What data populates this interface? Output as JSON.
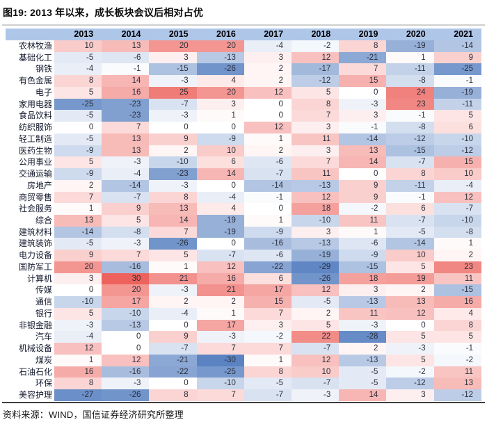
{
  "figure": {
    "title": "图19: 2013 年以来，成长板块会议后相对占优",
    "source": "资料来源：WIND，国信证券经济研究所整理"
  },
  "chart_data": {
    "type": "heatmap",
    "title": "图19: 2013 年以来，成长板块会议后相对占优",
    "columns": [
      "2013",
      "2014",
      "2015",
      "2016",
      "2017",
      "2018",
      "2019",
      "2020",
      "2021"
    ],
    "rows": [
      {
        "name": "农林牧渔",
        "values": [
          10,
          13,
          20,
          20,
          -4,
          -2,
          8,
          -19,
          -14
        ]
      },
      {
        "name": "基础化工",
        "values": [
          -5,
          -6,
          3,
          -13,
          3,
          12,
          -21,
          1,
          9
        ]
      },
      {
        "name": "钢铁",
        "values": [
          -4,
          -1,
          -15,
          -26,
          2,
          -17,
          7,
          -11,
          -25
        ]
      },
      {
        "name": "有色金属",
        "values": [
          8,
          14,
          -3,
          4,
          2,
          -12,
          15,
          -8,
          -1
        ]
      },
      {
        "name": "电子",
        "values": [
          5,
          16,
          25,
          20,
          12,
          5,
          0,
          24,
          -19
        ]
      },
      {
        "name": "家用电器",
        "values": [
          -25,
          -23,
          -7,
          3,
          0,
          8,
          -3,
          23,
          -11
        ]
      },
      {
        "name": "食品饮料",
        "values": [
          -5,
          -23,
          -3,
          1,
          0,
          7,
          3,
          -1,
          5
        ]
      },
      {
        "name": "纺织服饰",
        "values": [
          0,
          7,
          0,
          0,
          12,
          3,
          -1,
          -8,
          6
        ]
      },
      {
        "name": "轻工制造",
        "values": [
          -5,
          13,
          9,
          -9,
          1,
          11,
          -14,
          -12,
          -10
        ]
      },
      {
        "name": "医药生物",
        "values": [
          -9,
          13,
          2,
          10,
          2,
          3,
          13,
          -15,
          -12
        ]
      },
      {
        "name": "公用事业",
        "values": [
          5,
          -3,
          -10,
          6,
          -6,
          7,
          14,
          -7,
          15
        ]
      },
      {
        "name": "交通运输",
        "values": [
          -9,
          -4,
          -23,
          14,
          -7,
          11,
          0,
          8,
          10
        ]
      },
      {
        "name": "房地产",
        "values": [
          2,
          -14,
          -3,
          0,
          -14,
          -13,
          9,
          -11,
          -4
        ]
      },
      {
        "name": "商贸零售",
        "values": [
          7,
          -7,
          8,
          -4,
          -1,
          12,
          9,
          -1,
          12
        ]
      },
      {
        "name": "社会服务",
        "values": [
          1,
          9,
          13,
          4,
          0,
          18,
          -2,
          6,
          -7
        ]
      },
      {
        "name": "综合",
        "values": [
          13,
          5,
          14,
          -19,
          1,
          -10,
          11,
          -7,
          -10
        ]
      },
      {
        "name": "建筑材料",
        "values": [
          -14,
          -8,
          7,
          -19,
          -9,
          3,
          1,
          -5,
          -8
        ]
      },
      {
        "name": "建筑装饰",
        "values": [
          -5,
          -3,
          -26,
          0,
          -16,
          -13,
          -6,
          -14,
          1
        ]
      },
      {
        "name": "电力设备",
        "values": [
          9,
          7,
          5,
          -7,
          -6,
          -19,
          -9,
          10,
          2
        ]
      },
      {
        "name": "国防军工",
        "values": [
          20,
          -16,
          1,
          12,
          -22,
          -29,
          -15,
          5,
          23
        ]
      },
      {
        "name": "计算机",
        "values": [
          3,
          30,
          21,
          16,
          6,
          -26,
          18,
          19,
          11
        ]
      },
      {
        "name": "传媒",
        "values": [
          0,
          20,
          -3,
          21,
          17,
          12,
          3,
          2,
          -15
        ]
      },
      {
        "name": "通信",
        "values": [
          -10,
          17,
          2,
          2,
          15,
          -5,
          -13,
          13,
          16
        ]
      },
      {
        "name": "银行",
        "values": [
          5,
          -10,
          -4,
          1,
          7,
          2,
          11,
          12,
          4
        ]
      },
      {
        "name": "非银金融",
        "values": [
          -3,
          -13,
          0,
          17,
          3,
          5,
          -3,
          0,
          8
        ]
      },
      {
        "name": "汽车",
        "values": [
          -4,
          0,
          9,
          -3,
          -2,
          22,
          -28,
          5,
          5
        ]
      },
      {
        "name": "机械设备",
        "values": [
          12,
          0,
          -7,
          7,
          7,
          -7,
          2,
          -3,
          -1
        ]
      },
      {
        "name": "煤炭",
        "values": [
          1,
          12,
          -21,
          -30,
          1,
          12,
          -13,
          5,
          -2
        ]
      },
      {
        "name": "石油石化",
        "values": [
          16,
          -16,
          -22,
          -25,
          8,
          10,
          -5,
          -2,
          11
        ]
      },
      {
        "name": "环保",
        "values": [
          8,
          -3,
          0,
          -10,
          -5,
          -7,
          -5,
          -12,
          13
        ]
      },
      {
        "name": "美容护理",
        "values": [
          -27,
          -26,
          8,
          7,
          -7,
          -3,
          14,
          3,
          -12
        ]
      }
    ],
    "colorscale": {
      "mid": "#ffffff",
      "positive_max": "#ed625c",
      "negative_max": "#5b83c2",
      "abs_max": 30,
      "header_band": "#aec6e8"
    },
    "layout": {
      "legend": "none",
      "grid": "off",
      "value_alignment": "right",
      "header_position": "top"
    },
    "source": "资料来源：WIND，国信证券经济研究所整理"
  }
}
